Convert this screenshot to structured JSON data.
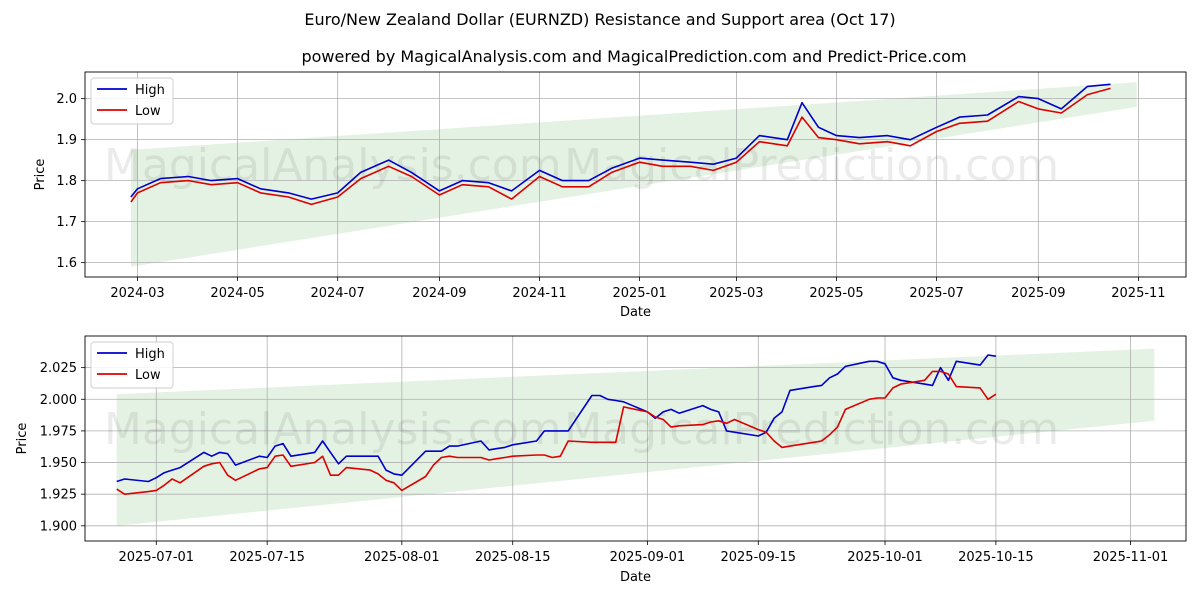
{
  "title": "Euro/New Zealand Dollar (EURNZD) Resistance and Support area (Oct 17)",
  "subtitle": "powered by MagicalAnalysis.com and MagicalPrediction.com and Predict-Price.com",
  "watermark": {
    "left": "MagicalAnalysis.com",
    "right": "MagicalPrediction.com"
  },
  "colors": {
    "high": "#0000cc",
    "low": "#dd0000",
    "band": "#b8ddb5",
    "grid": "#b0b0b0"
  },
  "chart_data": [
    {
      "type": "line",
      "xlabel": "Date",
      "ylabel": "Price",
      "xlim": [
        "2024-01-29",
        "2025-11-30"
      ],
      "ylim": [
        1.565,
        2.065
      ],
      "grid": true,
      "legend": "top-left",
      "x_ticks": [
        "2024-03-01",
        "2024-05-01",
        "2024-07-01",
        "2024-09-01",
        "2024-11-01",
        "2025-01-01",
        "2025-03-01",
        "2025-05-01",
        "2025-07-01",
        "2025-09-01",
        "2025-11-01"
      ],
      "x_tick_labels": [
        "2024-03",
        "2024-05",
        "2024-07",
        "2024-09",
        "2024-11",
        "2025-01",
        "2025-03",
        "2025-05",
        "2025-07",
        "2025-09",
        "2025-11"
      ],
      "y_ticks": [
        1.6,
        1.7,
        1.8,
        1.9,
        2.0
      ],
      "y_tick_labels": [
        "1.6",
        "1.7",
        "1.8",
        "1.9",
        "2.0"
      ],
      "band": {
        "x": [
          "2024-02-26",
          "2025-10-31"
        ],
        "upper": [
          1.875,
          2.04
        ],
        "lower": [
          1.59,
          1.98
        ]
      },
      "series": [
        {
          "name": "High",
          "color": "#0000cc",
          "x": [
            "2024-02-26",
            "2024-03-01",
            "2024-03-15",
            "2024-04-01",
            "2024-04-15",
            "2024-05-01",
            "2024-05-15",
            "2024-06-01",
            "2024-06-15",
            "2024-07-01",
            "2024-07-15",
            "2024-08-01",
            "2024-08-15",
            "2024-09-01",
            "2024-09-15",
            "2024-10-01",
            "2024-10-15",
            "2024-11-01",
            "2024-11-15",
            "2024-12-01",
            "2024-12-15",
            "2025-01-01",
            "2025-01-15",
            "2025-02-01",
            "2025-02-15",
            "2025-03-01",
            "2025-03-15",
            "2025-04-01",
            "2025-04-10",
            "2025-04-20",
            "2025-05-01",
            "2025-05-15",
            "2025-06-01",
            "2025-06-15",
            "2025-07-01",
            "2025-07-15",
            "2025-08-01",
            "2025-08-20",
            "2025-09-01",
            "2025-09-15",
            "2025-10-01",
            "2025-10-15"
          ],
          "values": [
            1.76,
            1.78,
            1.805,
            1.81,
            1.8,
            1.805,
            1.78,
            1.77,
            1.755,
            1.77,
            1.82,
            1.85,
            1.82,
            1.775,
            1.8,
            1.795,
            1.775,
            1.825,
            1.8,
            1.8,
            1.83,
            1.855,
            1.85,
            1.845,
            1.84,
            1.855,
            1.91,
            1.9,
            1.99,
            1.93,
            1.91,
            1.905,
            1.91,
            1.9,
            1.93,
            1.955,
            1.96,
            2.005,
            2.0,
            1.975,
            2.03,
            2.035
          ]
        },
        {
          "name": "Low",
          "color": "#dd0000",
          "x": [
            "2024-02-26",
            "2024-03-01",
            "2024-03-15",
            "2024-04-01",
            "2024-04-15",
            "2024-05-01",
            "2024-05-15",
            "2024-06-01",
            "2024-06-15",
            "2024-07-01",
            "2024-07-15",
            "2024-08-01",
            "2024-08-15",
            "2024-09-01",
            "2024-09-15",
            "2024-10-01",
            "2024-10-15",
            "2024-11-01",
            "2024-11-15",
            "2024-12-01",
            "2024-12-15",
            "2025-01-01",
            "2025-01-15",
            "2025-02-01",
            "2025-02-15",
            "2025-03-01",
            "2025-03-15",
            "2025-04-01",
            "2025-04-10",
            "2025-04-20",
            "2025-05-01",
            "2025-05-15",
            "2025-06-01",
            "2025-06-15",
            "2025-07-01",
            "2025-07-15",
            "2025-08-01",
            "2025-08-20",
            "2025-09-01",
            "2025-09-15",
            "2025-10-01",
            "2025-10-15"
          ],
          "values": [
            1.748,
            1.77,
            1.795,
            1.8,
            1.79,
            1.795,
            1.77,
            1.76,
            1.742,
            1.76,
            1.805,
            1.835,
            1.81,
            1.765,
            1.79,
            1.785,
            1.755,
            1.81,
            1.785,
            1.785,
            1.82,
            1.845,
            1.835,
            1.835,
            1.825,
            1.845,
            1.895,
            1.885,
            1.955,
            1.905,
            1.9,
            1.89,
            1.895,
            1.885,
            1.92,
            1.94,
            1.945,
            1.993,
            1.975,
            1.965,
            2.01,
            2.025
          ]
        }
      ]
    },
    {
      "type": "line",
      "xlabel": "Date",
      "ylabel": "Price",
      "xlim": [
        "2025-06-22",
        "2025-11-08"
      ],
      "ylim": [
        1.888,
        2.05
      ],
      "grid": true,
      "legend": "top-left",
      "x_ticks": [
        "2025-07-01",
        "2025-07-15",
        "2025-08-01",
        "2025-08-15",
        "2025-09-01",
        "2025-09-15",
        "2025-10-01",
        "2025-10-15",
        "2025-11-01"
      ],
      "x_tick_labels": [
        "2025-07-01",
        "2025-07-15",
        "2025-08-01",
        "2025-08-15",
        "2025-09-01",
        "2025-09-15",
        "2025-10-01",
        "2025-10-15",
        "2025-11-01"
      ],
      "y_ticks": [
        1.9,
        1.925,
        1.95,
        1.975,
        2.0,
        2.025
      ],
      "y_tick_labels": [
        "1.900",
        "1.925",
        "1.950",
        "1.975",
        "2.000",
        "2.025"
      ],
      "band": {
        "x": [
          "2025-06-26",
          "2025-11-04"
        ],
        "upper": [
          2.004,
          2.04
        ],
        "lower": [
          1.9,
          1.983
        ]
      },
      "series": [
        {
          "name": "High",
          "color": "#0000cc",
          "x": [
            "2025-06-26",
            "2025-06-27",
            "2025-06-30",
            "2025-07-01",
            "2025-07-02",
            "2025-07-03",
            "2025-07-04",
            "2025-07-07",
            "2025-07-08",
            "2025-07-09",
            "2025-07-10",
            "2025-07-11",
            "2025-07-14",
            "2025-07-15",
            "2025-07-16",
            "2025-07-17",
            "2025-07-18",
            "2025-07-21",
            "2025-07-22",
            "2025-07-23",
            "2025-07-24",
            "2025-07-25",
            "2025-07-28",
            "2025-07-29",
            "2025-07-30",
            "2025-07-31",
            "2025-08-01",
            "2025-08-04",
            "2025-08-05",
            "2025-08-06",
            "2025-08-07",
            "2025-08-08",
            "2025-08-11",
            "2025-08-12",
            "2025-08-13",
            "2025-08-14",
            "2025-08-15",
            "2025-08-18",
            "2025-08-19",
            "2025-08-20",
            "2025-08-21",
            "2025-08-22",
            "2025-08-25",
            "2025-08-26",
            "2025-08-27",
            "2025-08-28",
            "2025-08-29",
            "2025-09-01",
            "2025-09-02",
            "2025-09-03",
            "2025-09-04",
            "2025-09-05",
            "2025-09-08",
            "2025-09-09",
            "2025-09-10",
            "2025-09-11",
            "2025-09-12",
            "2025-09-15",
            "2025-09-16",
            "2025-09-17",
            "2025-09-18",
            "2025-09-19",
            "2025-09-22",
            "2025-09-23",
            "2025-09-24",
            "2025-09-25",
            "2025-09-26",
            "2025-09-29",
            "2025-09-30",
            "2025-10-01",
            "2025-10-02",
            "2025-10-03",
            "2025-10-06",
            "2025-10-07",
            "2025-10-08",
            "2025-10-09",
            "2025-10-10",
            "2025-10-13",
            "2025-10-14",
            "2025-10-15"
          ],
          "values": [
            1.935,
            1.937,
            1.935,
            1.938,
            1.942,
            1.944,
            1.946,
            1.958,
            1.955,
            1.958,
            1.957,
            1.948,
            1.955,
            1.954,
            1.963,
            1.965,
            1.955,
            1.958,
            1.967,
            1.958,
            1.949,
            1.955,
            1.955,
            1.955,
            1.944,
            1.941,
            1.94,
            1.959,
            1.959,
            1.959,
            1.963,
            1.963,
            1.967,
            1.96,
            1.961,
            1.962,
            1.964,
            1.967,
            1.975,
            1.975,
            1.975,
            1.975,
            2.003,
            2.003,
            2.0,
            1.999,
            1.998,
            1.99,
            1.985,
            1.99,
            1.992,
            1.989,
            1.995,
            1.992,
            1.99,
            1.975,
            1.974,
            1.971,
            1.974,
            1.985,
            1.99,
            2.007,
            2.01,
            2.011,
            2.017,
            2.02,
            2.026,
            2.03,
            2.03,
            2.028,
            2.017,
            2.015,
            2.012,
            2.011,
            2.025,
            2.015,
            2.03,
            2.027,
            2.035,
            2.034
          ]
        },
        {
          "name": "Low",
          "color": "#dd0000",
          "x": [
            "2025-06-26",
            "2025-06-27",
            "2025-06-30",
            "2025-07-01",
            "2025-07-02",
            "2025-07-03",
            "2025-07-04",
            "2025-07-07",
            "2025-07-08",
            "2025-07-09",
            "2025-07-10",
            "2025-07-11",
            "2025-07-14",
            "2025-07-15",
            "2025-07-16",
            "2025-07-17",
            "2025-07-18",
            "2025-07-21",
            "2025-07-22",
            "2025-07-23",
            "2025-07-24",
            "2025-07-25",
            "2025-07-28",
            "2025-07-29",
            "2025-07-30",
            "2025-07-31",
            "2025-08-01",
            "2025-08-04",
            "2025-08-05",
            "2025-08-06",
            "2025-08-07",
            "2025-08-08",
            "2025-08-11",
            "2025-08-12",
            "2025-08-13",
            "2025-08-14",
            "2025-08-15",
            "2025-08-18",
            "2025-08-19",
            "2025-08-20",
            "2025-08-21",
            "2025-08-22",
            "2025-08-25",
            "2025-08-26",
            "2025-08-27",
            "2025-08-28",
            "2025-08-29",
            "2025-09-01",
            "2025-09-02",
            "2025-09-03",
            "2025-09-04",
            "2025-09-05",
            "2025-09-08",
            "2025-09-09",
            "2025-09-10",
            "2025-09-11",
            "2025-09-12",
            "2025-09-15",
            "2025-09-16",
            "2025-09-17",
            "2025-09-18",
            "2025-09-19",
            "2025-09-22",
            "2025-09-23",
            "2025-09-24",
            "2025-09-25",
            "2025-09-26",
            "2025-09-29",
            "2025-09-30",
            "2025-10-01",
            "2025-10-02",
            "2025-10-03",
            "2025-10-06",
            "2025-10-07",
            "2025-10-08",
            "2025-10-09",
            "2025-10-10",
            "2025-10-13",
            "2025-10-14",
            "2025-10-15"
          ],
          "values": [
            1.929,
            1.925,
            1.927,
            1.928,
            1.932,
            1.937,
            1.934,
            1.947,
            1.949,
            1.95,
            1.94,
            1.936,
            1.945,
            1.946,
            1.955,
            1.956,
            1.947,
            1.95,
            1.955,
            1.94,
            1.94,
            1.946,
            1.944,
            1.941,
            1.936,
            1.934,
            1.928,
            1.939,
            1.948,
            1.954,
            1.955,
            1.954,
            1.954,
            1.952,
            1.953,
            1.954,
            1.955,
            1.956,
            1.956,
            1.954,
            1.955,
            1.967,
            1.966,
            1.966,
            1.966,
            1.966,
            1.994,
            1.99,
            1.986,
            1.984,
            1.978,
            1.979,
            1.98,
            1.982,
            1.983,
            1.981,
            1.984,
            1.976,
            1.974,
            1.967,
            1.962,
            1.963,
            1.966,
            1.967,
            1.972,
            1.978,
            1.992,
            2.0,
            2.001,
            2.001,
            2.009,
            2.012,
            2.015,
            2.022,
            2.022,
            2.02,
            2.01,
            2.009,
            2.0,
            2.004
          ]
        }
      ]
    }
  ]
}
